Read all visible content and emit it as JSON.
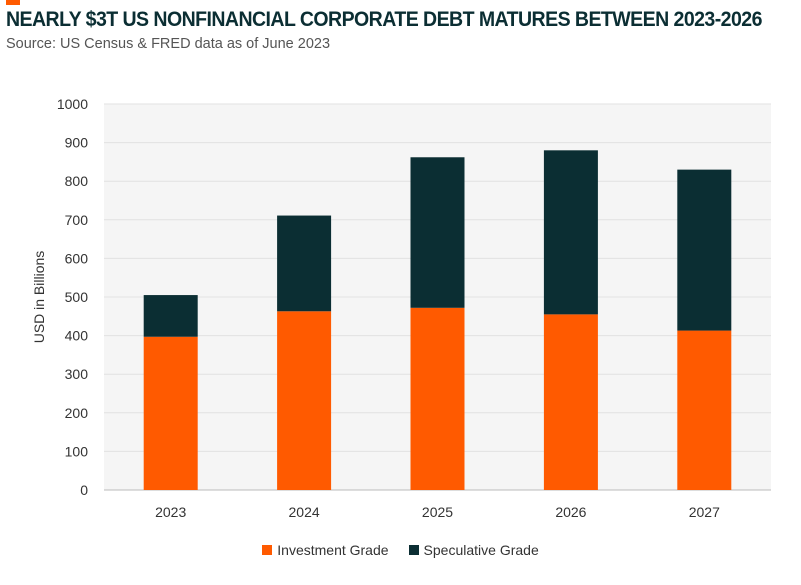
{
  "chart_data": {
    "type": "bar",
    "stacked": true,
    "title": "NEARLY $3T US NONFINANCIAL CORPORATE DEBT MATURES BETWEEN 2023-2026",
    "subtitle": "Source: US Census & FRED data as of June 2023",
    "xlabel": "",
    "ylabel": "USD in Billions",
    "ylim": [
      0,
      1000
    ],
    "yticks": [
      0,
      100,
      200,
      300,
      400,
      500,
      600,
      700,
      800,
      900,
      1000
    ],
    "grid": true,
    "legend_position": "bottom",
    "categories": [
      "2023",
      "2024",
      "2025",
      "2026",
      "2027"
    ],
    "series": [
      {
        "name": "Investment Grade",
        "color": "#FF5A00",
        "values": [
          397,
          463,
          472,
          455,
          413
        ]
      },
      {
        "name": "Speculative Grade",
        "color": "#0B2E33",
        "values": [
          108,
          248,
          390,
          425,
          417
        ]
      }
    ]
  }
}
